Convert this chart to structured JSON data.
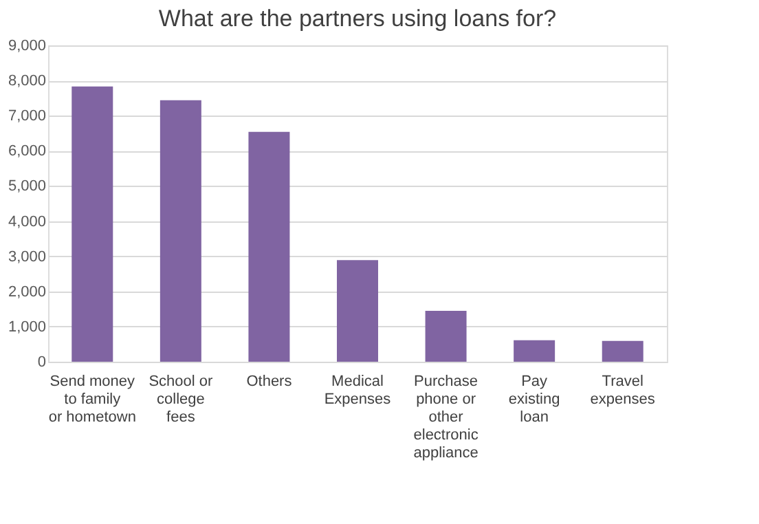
{
  "chart_data": {
    "type": "bar",
    "title": "What are the partners using loans for?",
    "categories": [
      "Send money to family or hometown",
      "School or college fees",
      "Others",
      "Medical Expenses",
      "Purchase phone or other electronic appliance",
      "Pay existing loan",
      "Travel expenses"
    ],
    "values": [
      7830,
      7440,
      6540,
      2890,
      1450,
      610,
      590
    ],
    "color": "#8064a2",
    "ylim": [
      0,
      9000
    ],
    "yticks": [
      {
        "value": 0,
        "label": "0"
      },
      {
        "value": 1000,
        "label": "1,000"
      },
      {
        "value": 2000,
        "label": "2,000"
      },
      {
        "value": 3000,
        "label": "3,000"
      },
      {
        "value": 4000,
        "label": "4,000"
      },
      {
        "value": 5000,
        "label": "5,000"
      },
      {
        "value": 6000,
        "label": "6,000"
      },
      {
        "value": 7000,
        "label": "7,000"
      },
      {
        "value": 8000,
        "label": "8,000"
      },
      {
        "value": 9000,
        "label": "9,000"
      }
    ],
    "grid": "y"
  }
}
